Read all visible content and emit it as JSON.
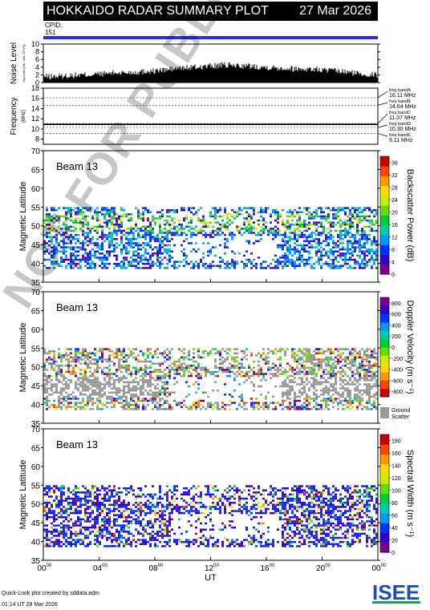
{
  "header": {
    "title": "HOKKAIDO RADAR SUMMARY PLOT",
    "date": "27 Mar 2026",
    "cpid_label": "CPID:",
    "cpid_value": "151",
    "cpid_bar_color": "#2a2aff"
  },
  "watermark": "NOT FOR PUBLICATION",
  "footer": {
    "line1": "Quick-Look plot created by sddata.adm",
    "line2": "01:14 UT 28 Mar 2026"
  },
  "logo": {
    "text": "ISEE",
    "colors": [
      "#1a4fb5",
      "#18a05a",
      "#1a4fb5",
      "#18a05a"
    ]
  },
  "chart_data": [
    {
      "type": "area",
      "panel": "noise",
      "ylabel": "Noise Level",
      "ylabel_small": "log scale [arb. unit, 10^{?}]",
      "ylim": [
        0,
        10
      ],
      "yticks": [
        0,
        2,
        4,
        6,
        8,
        10
      ],
      "x_hours": [
        0,
        1,
        2,
        3,
        4,
        5,
        6,
        7,
        8,
        9,
        10,
        11,
        12,
        13,
        14,
        15,
        16,
        17,
        18,
        19,
        20,
        21,
        22,
        23,
        24
      ],
      "values": [
        1.5,
        1.6,
        1.8,
        2.0,
        2.2,
        2.5,
        2.6,
        2.8,
        3.0,
        3.4,
        3.8,
        4.0,
        4.3,
        4.5,
        4.4,
        4.2,
        4.0,
        3.8,
        3.6,
        3.5,
        3.3,
        3.0,
        2.6,
        2.2,
        2.0
      ]
    },
    {
      "type": "line",
      "panel": "frequency",
      "ylabel": "Frequency",
      "ylabel_unit": "(MHz)",
      "ylim": [
        7,
        18
      ],
      "yticks": [
        8,
        10,
        12,
        14,
        16,
        18
      ],
      "bands": [
        {
          "name": "freq bandA",
          "freq": "16.11 MHz",
          "value": 16.11
        },
        {
          "name": "freq bandB",
          "freq": "14.64 MHz",
          "value": 14.64
        },
        {
          "name": "freq bandC",
          "freq": "11.07 MHz",
          "value": 11.07
        },
        {
          "name": "freq bandD",
          "freq": "10.30 MHz",
          "value": 10.3
        },
        {
          "name": "freq bandE",
          "freq": "9.11 MHz",
          "value": 9.11
        }
      ],
      "operating_freq": 10.9
    },
    {
      "type": "heatmap",
      "panel": "power",
      "beam_label": "Beam 13",
      "ylabel": "Magnetic Latitude",
      "ylim": [
        35,
        70
      ],
      "yticks": [
        35,
        40,
        45,
        50,
        55,
        60,
        65,
        70
      ],
      "colorbar": {
        "label": "Backscatter Power (dB)",
        "ticks": [
          0,
          4,
          8,
          12,
          16,
          20,
          24,
          28,
          32,
          36
        ],
        "range": [
          0,
          38
        ],
        "colors": [
          "#7a0090",
          "#3300cc",
          "#0033ff",
          "#0099ff",
          "#00ccaa",
          "#00cc33",
          "#66dd00",
          "#ccee00",
          "#ffdd00",
          "#ff9900",
          "#ff4400",
          "#cc0000"
        ]
      }
    },
    {
      "type": "heatmap",
      "panel": "velocity",
      "beam_label": "Beam 13",
      "ylabel": "Magnetic Latitude",
      "ylim": [
        35,
        70
      ],
      "yticks": [
        35,
        40,
        45,
        50,
        55,
        60,
        65,
        70
      ],
      "colorbar": {
        "label": "Doppler Velocity (m s⁻¹)",
        "ticks": [
          800,
          600,
          400,
          200,
          0,
          -200,
          -400,
          -600,
          -800
        ],
        "range": [
          -900,
          900
        ],
        "colors": [
          "#cc0000",
          "#ff4400",
          "#ff9900",
          "#ffdd00",
          "#ccee00",
          "#66dd00",
          "#00cc33",
          "#00ccaa",
          "#0099ff",
          "#0033ff",
          "#3300cc",
          "#7a0090"
        ]
      },
      "ground_scatter_label": [
        "Ground",
        "Scatter"
      ],
      "ground_scatter_color": "#999999"
    },
    {
      "type": "heatmap",
      "panel": "width",
      "beam_label": "Beam 13",
      "ylabel": "Magnetic Latitude",
      "ylim": [
        35,
        70
      ],
      "yticks": [
        35,
        40,
        45,
        50,
        55,
        60,
        65,
        70
      ],
      "colorbar": {
        "label": "Spectral Width (m s⁻¹)",
        "ticks": [
          0,
          20,
          40,
          60,
          80,
          100,
          120,
          140,
          160,
          180
        ],
        "range": [
          0,
          190
        ],
        "colors": [
          "#7a0090",
          "#3300cc",
          "#0033ff",
          "#0099ff",
          "#00ccaa",
          "#00cc33",
          "#66dd00",
          "#ccee00",
          "#ffdd00",
          "#ff9900",
          "#ff4400",
          "#cc0000"
        ]
      }
    }
  ],
  "x_axis": {
    "label": "UT",
    "ticks": [
      "00",
      "04",
      "08",
      "12",
      "16",
      "20",
      "00"
    ],
    "tick_sup": "00",
    "range_hours": [
      0,
      24
    ]
  }
}
